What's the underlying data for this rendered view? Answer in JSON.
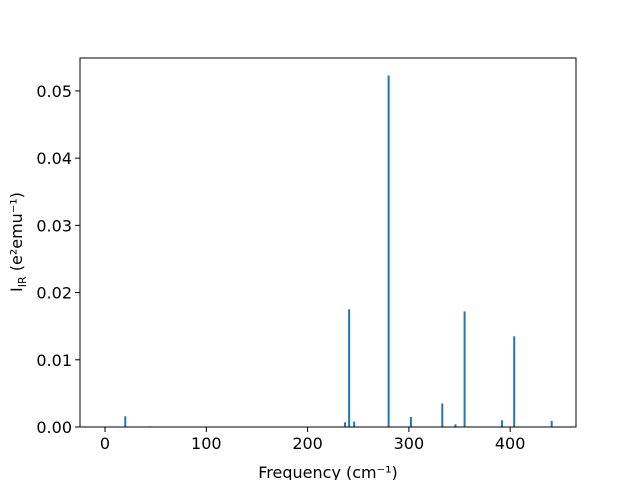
{
  "chart_data": {
    "type": "bar",
    "x_label": "Frequency (cm⁻¹)",
    "y_label": [
      "I",
      "IR",
      " (e²emu⁻¹)"
    ],
    "x": [
      20,
      44,
      237,
      241,
      246,
      280,
      302,
      333,
      346,
      355,
      392,
      404,
      441
    ],
    "values": [
      0.0016,
      0.0001,
      0.0007,
      0.0175,
      0.0008,
      0.0523,
      0.0015,
      0.0035,
      0.0004,
      0.0172,
      0.001,
      0.0135,
      0.0009
    ],
    "color": "#1f77b4",
    "xlim": [
      -24.7,
      465
    ],
    "ylim": [
      0,
      0.0549
    ],
    "xticks": [
      0,
      100,
      200,
      300,
      400
    ],
    "yticks": [
      {
        "value": 0,
        "label": "0.00"
      },
      {
        "value": 0.01,
        "label": "0.01"
      },
      {
        "value": 0.02,
        "label": "0.02"
      },
      {
        "value": 0.03,
        "label": "0.03"
      },
      {
        "value": 0.04,
        "label": "0.04"
      },
      {
        "value": 0.05,
        "label": "0.05"
      }
    ],
    "grid": false
  }
}
